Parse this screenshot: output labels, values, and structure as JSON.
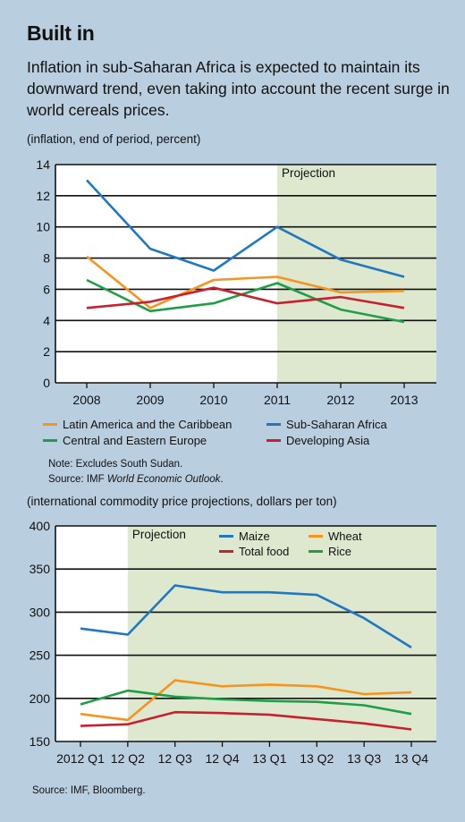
{
  "title": "Built in",
  "subtitle": "Inflation in sub-Saharan Africa is expected to maintain its downward trend, even taking into account the recent surge in world cereals prices.",
  "chart1_unit": "(inflation, end of period, percent)",
  "chart2_unit": "(international commodity price projections, dollars per ton)",
  "note_excludes": "Note: Excludes South Sudan.",
  "source1_prefix": "Source: IMF ",
  "source1_italic": "World Economic Outlook",
  "source1_suffix": ".",
  "source2": "Source: IMF, Bloomberg.",
  "colors": {
    "background": "#b9cfe0",
    "projection": "#dde8cf",
    "plot_bg": "#ffffff",
    "orange": "#f7941d",
    "blue": "#1f78c1",
    "green": "#1f9e48",
    "red": "#c8202f"
  },
  "chart_data": [
    {
      "type": "line",
      "title": "",
      "ylabel": "(inflation, end of period, percent)",
      "xlabel": "",
      "x": [
        "2008",
        "2009",
        "2010",
        "2011",
        "2012",
        "2013"
      ],
      "ylim": [
        0,
        14
      ],
      "yticks": [
        "0",
        "2",
        "4",
        "6",
        "8",
        "10",
        "12",
        "14"
      ],
      "grid": true,
      "projection_label": "Projection",
      "projection_from": "2011",
      "legend_position": "bottom",
      "series": [
        {
          "name": "Latin America and the Caribbean",
          "color": "#f7941d",
          "values": [
            8.1,
            4.8,
            6.6,
            6.8,
            5.8,
            5.9
          ]
        },
        {
          "name": "Sub-Saharan Africa",
          "color": "#1f78c1",
          "values": [
            13.0,
            8.6,
            7.2,
            10.0,
            7.9,
            6.8
          ]
        },
        {
          "name": "Central and Eastern Europe",
          "color": "#1f9e48",
          "values": [
            6.6,
            4.6,
            5.1,
            6.4,
            4.7,
            3.9
          ]
        },
        {
          "name": "Developing Asia",
          "color": "#c8202f",
          "values": [
            4.8,
            5.2,
            6.1,
            5.1,
            5.5,
            4.8
          ]
        }
      ]
    },
    {
      "type": "line",
      "title": "",
      "ylabel": "(international commodity price projections, dollars per ton)",
      "xlabel": "",
      "x": [
        "2012 Q1",
        "12 Q2",
        "12 Q3",
        "12 Q4",
        "13 Q1",
        "13 Q2",
        "13 Q3",
        "13 Q4"
      ],
      "ylim": [
        150,
        400
      ],
      "yticks": [
        "150",
        "200",
        "250",
        "300",
        "350",
        "400"
      ],
      "grid": true,
      "projection_label": "Projection",
      "projection_from": "12 Q2",
      "legend_position": "top",
      "series": [
        {
          "name": "Maize",
          "color": "#1f78c1",
          "values": [
            281,
            274,
            331,
            323,
            323,
            320,
            293,
            259
          ]
        },
        {
          "name": "Wheat",
          "color": "#f7941d",
          "values": [
            182,
            175,
            221,
            214,
            216,
            214,
            205,
            207
          ]
        },
        {
          "name": "Total food",
          "color": "#c8202f",
          "values": [
            168,
            170,
            184,
            183,
            181,
            176,
            171,
            164
          ]
        },
        {
          "name": "Rice",
          "color": "#1f9e48",
          "values": [
            193,
            209,
            202,
            199,
            197,
            196,
            192,
            182
          ]
        }
      ]
    }
  ]
}
